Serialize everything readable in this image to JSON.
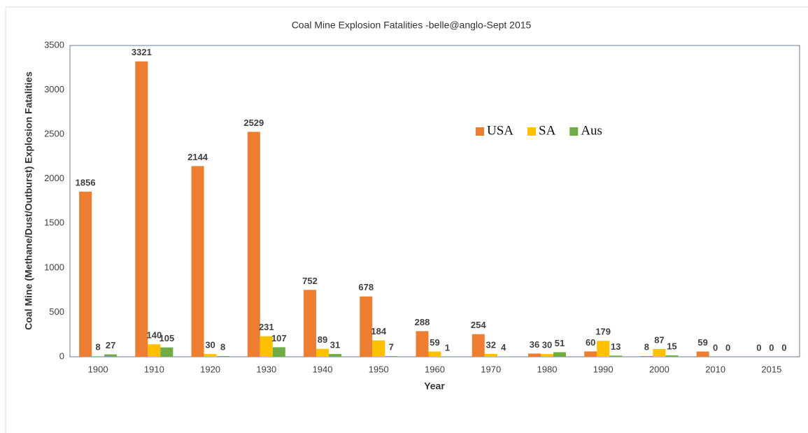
{
  "chart_data": {
    "type": "bar",
    "title": "Coal Mine Explosion Fatalities -belle@anglo-Sept 2015",
    "x_label": "Year",
    "y_label": "Coal Mine (Methane/Dust/Outburst) Explosion Fatalities",
    "categories": [
      "1900",
      "1910",
      "1920",
      "1930",
      "1940",
      "1950",
      "1960",
      "1970",
      "1980",
      "1990",
      "2000",
      "2010",
      "2015"
    ],
    "series": [
      {
        "name": "USA",
        "color": "#ed7d31",
        "values": [
          1856,
          3321,
          2144,
          2529,
          752,
          678,
          288,
          254,
          36,
          60,
          8,
          59,
          0
        ]
      },
      {
        "name": "SA",
        "color": "#ffc000",
        "values": [
          8,
          140,
          30,
          231,
          89,
          184,
          59,
          32,
          30,
          179,
          87,
          0,
          0
        ]
      },
      {
        "name": "Aus",
        "color": "#70ad47",
        "values": [
          27,
          105,
          8,
          107,
          31,
          7,
          1,
          4,
          51,
          13,
          15,
          0,
          0
        ]
      }
    ],
    "ylim": [
      0,
      3500
    ],
    "yticks": [
      0,
      500,
      1000,
      1500,
      2000,
      2500,
      3000,
      3500
    ],
    "grid": false,
    "legend": "top-right"
  }
}
